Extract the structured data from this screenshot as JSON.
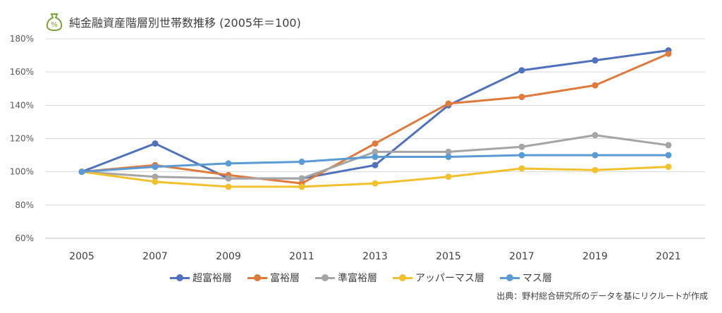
{
  "title": "純金融資産階層別世帯数推移 (2005年＝100)",
  "icon": "money-bag-percent-icon",
  "icon_color": "#7aa33a",
  "source": "出典：野村総合研究所のデータを基にリクルートが作成",
  "chart_data": {
    "type": "line",
    "x": [
      "2005",
      "2007",
      "2009",
      "2011",
      "2013",
      "2015",
      "2017",
      "2019",
      "2021"
    ],
    "ylim": [
      60,
      180
    ],
    "yticks": [
      60,
      80,
      100,
      120,
      140,
      160,
      180
    ],
    "ytick_labels": [
      "60%",
      "80%",
      "100%",
      "120%",
      "140%",
      "160%",
      "180%"
    ],
    "grid": true,
    "legend_position": "bottom",
    "series": [
      {
        "name": "超富裕層",
        "color": "#4f71be",
        "values": [
          100,
          117,
          96,
          96,
          104,
          140,
          161,
          167,
          173
        ]
      },
      {
        "name": "富裕層",
        "color": "#e07a3b",
        "values": [
          100,
          104,
          98,
          93,
          117,
          141,
          145,
          152,
          171
        ]
      },
      {
        "name": "準富裕層",
        "color": "#a5a5a5",
        "values": [
          100,
          97,
          96,
          96,
          112,
          112,
          115,
          122,
          116
        ]
      },
      {
        "name": "アッパーマス層",
        "color": "#f2c12e",
        "values": [
          100,
          94,
          91,
          91,
          93,
          97,
          102,
          101,
          103
        ]
      },
      {
        "name": "マス層",
        "color": "#5b9bd5",
        "values": [
          100,
          103,
          105,
          106,
          109,
          109,
          110,
          110,
          110
        ]
      }
    ]
  }
}
